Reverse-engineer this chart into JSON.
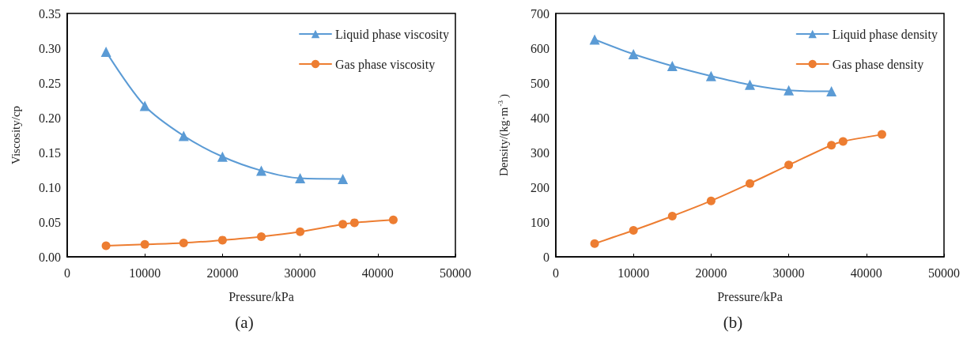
{
  "chart_data": [
    {
      "type": "line",
      "xlabel": "Pressure/kPa",
      "ylabel": "Viscosity/cp",
      "annotations": [
        "(a)"
      ],
      "legend": "top right",
      "grid": false,
      "xlim": [
        0,
        50000
      ],
      "xticks": [
        0,
        10000,
        20000,
        30000,
        40000,
        50000
      ],
      "ylim": [
        0,
        0.35
      ],
      "yticks": [
        {
          "value": 0,
          "label": "0.00"
        },
        0.05,
        {
          "value": 0.1,
          "label": "0.10"
        },
        0.15,
        {
          "value": 0.2,
          "label": "0.20"
        },
        0.25,
        {
          "value": 0.3,
          "label": "0.30"
        },
        0.35
      ],
      "series": [
        {
          "name": "Liquid phase viscosity",
          "color": "#5b9bd5",
          "marker": "triangle",
          "x": [
            5000,
            10000,
            15000,
            20000,
            25000,
            30000,
            35500
          ],
          "values": [
            0.295,
            0.217,
            0.174,
            0.144,
            0.124,
            0.113,
            0.112
          ]
        },
        {
          "name": "Gas phase viscosity",
          "color": "#ed7d31",
          "marker": "circle",
          "x": [
            5000,
            10000,
            15000,
            20000,
            25000,
            30000,
            35500,
            37000,
            42000
          ],
          "values": [
            0.016,
            0.018,
            0.02,
            0.024,
            0.029,
            0.036,
            0.047,
            0.049,
            0.053
          ]
        }
      ]
    },
    {
      "type": "line",
      "xlabel": "Pressure/kPa",
      "ylabel": "Density/(kg·m$^{-3}$)",
      "annotations": [
        "(b)"
      ],
      "legend": "top right",
      "grid": false,
      "xlim": [
        0,
        50000
      ],
      "xticks": [
        0,
        10000,
        20000,
        30000,
        40000,
        50000
      ],
      "ylim": [
        0,
        700
      ],
      "yticks": [
        0,
        100,
        200,
        300,
        400,
        500,
        600,
        700
      ],
      "series": [
        {
          "name": "Liquid phase density",
          "color": "#5b9bd5",
          "marker": "triangle",
          "x": [
            5000,
            10000,
            15000,
            20000,
            25000,
            30000,
            35500
          ],
          "values": [
            625,
            583,
            549,
            520,
            495,
            479,
            476
          ]
        },
        {
          "name": "Gas phase density",
          "color": "#ed7d31",
          "marker": "circle",
          "x": [
            5000,
            10000,
            15000,
            20000,
            25000,
            30000,
            35500,
            37000,
            42000
          ],
          "values": [
            38,
            76,
            117,
            161,
            211,
            264,
            321,
            332,
            352
          ]
        }
      ]
    }
  ]
}
